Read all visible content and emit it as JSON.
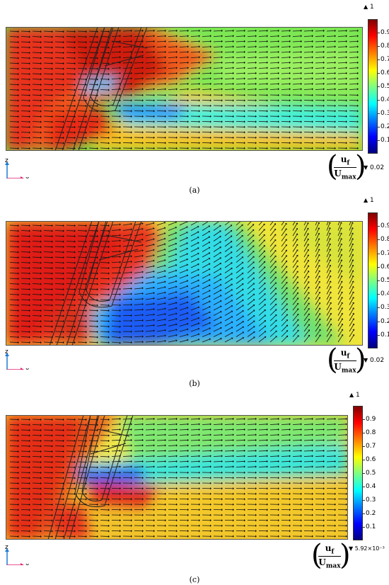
{
  "quantity": {
    "numerator": "u",
    "numerator_sub": "f",
    "denominator": "U",
    "denominator_sub": "max"
  },
  "axes_triad": {
    "vertical": "z",
    "horizontal": "x",
    "depth": "y"
  },
  "colormap": [
    "#00007f",
    "#0000ff",
    "#007fff",
    "#00ffff",
    "#7fff7f",
    "#ffff00",
    "#ff7f00",
    "#ff0000",
    "#7f0000"
  ],
  "panels": [
    {
      "caption": "(a)",
      "colorbar": {
        "max_label": "1",
        "min_label": "0.02",
        "ticks": [
          "0.9",
          "0.8",
          "0.7",
          "0.6",
          "0.5",
          "0.4",
          "0.3",
          "0.2",
          "0.1"
        ]
      }
    },
    {
      "caption": "(b)",
      "colorbar": {
        "max_label": "1",
        "min_label": "0.02",
        "ticks": [
          "0.9",
          "0.8",
          "0.7",
          "0.6",
          "0.5",
          "0.4",
          "0.3",
          "0.2",
          "0.1"
        ]
      }
    },
    {
      "caption": "(c)",
      "colorbar": {
        "max_label": "1",
        "min_label": "5.92×10⁻³",
        "ticks": [
          "0.9",
          "0.8",
          "0.7",
          "0.6",
          "0.5",
          "0.4",
          "0.3",
          "0.2",
          "0.1"
        ]
      }
    }
  ]
}
